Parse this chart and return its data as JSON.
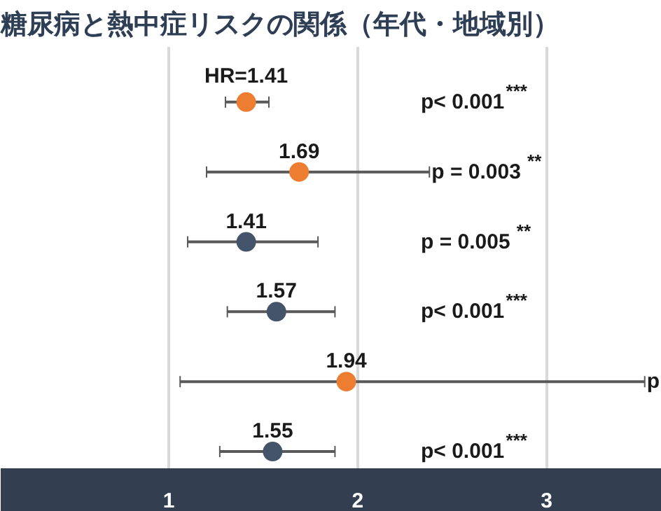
{
  "chart_data": {
    "type": "scatter",
    "orientation": "horizontal",
    "title": "糖尿病と熱中症リスクの関係（年代・地域別）",
    "categories": [
      null,
      null,
      null,
      null,
      null,
      null
    ],
    "series": [
      {
        "color": "#ed7d31",
        "values": [
          1.41,
          1.69,
          null,
          null,
          1.94,
          null
        ],
        "errors": [
          [
            1.3,
            1.53
          ],
          [
            1.2,
            2.38
          ],
          null,
          null,
          [
            1.06,
            3.52
          ],
          null
        ],
        "value_labels": [
          "HR=1.41",
          "1.69",
          null,
          null,
          "1.94",
          null
        ]
      },
      {
        "color": "#44546a",
        "values": [
          null,
          null,
          1.41,
          1.57,
          null,
          1.55
        ],
        "errors": [
          null,
          null,
          [
            1.1,
            1.79
          ],
          [
            1.31,
            1.88
          ],
          null,
          [
            1.27,
            1.88
          ]
        ],
        "value_labels": [
          null,
          null,
          "1.41",
          "1.57",
          null,
          "1.55"
        ]
      }
    ],
    "annotations": [
      "p< 0.001$^{***}$",
      "p = 0.003$^{**}$",
      "p = 0.005$^{**}$",
      "p< 0.001$^{***}$",
      "p",
      "p< 0.001$^{***}$"
    ],
    "xlim": [
      0.11,
      3.61
    ],
    "xticks": [
      1,
      2,
      3
    ],
    "grid": "x",
    "marker": "circle"
  }
}
